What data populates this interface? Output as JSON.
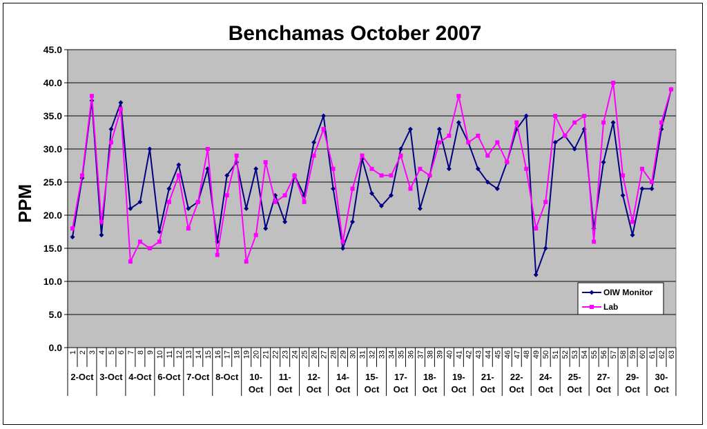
{
  "chart_data": {
    "type": "line",
    "title": "Benchamas October 2007",
    "xlabel": "",
    "ylabel": "PPM",
    "ylim": [
      0,
      45
    ],
    "yticks": [
      "0.0",
      "5.0",
      "10.0",
      "15.0",
      "20.0",
      "25.0",
      "30.0",
      "35.0",
      "40.0",
      "45.0"
    ],
    "grid": true,
    "legend_position": "bottom-right",
    "x": [
      "1",
      "2",
      "3",
      "4",
      "5",
      "6",
      "7",
      "8",
      "9",
      "10",
      "11",
      "12",
      "13",
      "14",
      "15",
      "16",
      "17",
      "18",
      "19",
      "20",
      "21",
      "22",
      "23",
      "24",
      "25",
      "26",
      "27",
      "28",
      "29",
      "30",
      "31",
      "32",
      "33",
      "34",
      "35",
      "36",
      "37",
      "38",
      "39",
      "40",
      "41",
      "42",
      "43",
      "44",
      "45",
      "46",
      "47",
      "48",
      "49",
      "50",
      "51",
      "52",
      "53",
      "54",
      "55",
      "56",
      "57",
      "58",
      "59",
      "60",
      "61",
      "62",
      "63"
    ],
    "groups": [
      {
        "start": 1,
        "end": 3,
        "lines": [
          "2-Oct"
        ]
      },
      {
        "start": 4,
        "end": 6,
        "lines": [
          "3-Oct"
        ]
      },
      {
        "start": 7,
        "end": 9,
        "lines": [
          "4-Oct"
        ]
      },
      {
        "start": 10,
        "end": 12,
        "lines": [
          "6-Oct"
        ]
      },
      {
        "start": 13,
        "end": 15,
        "lines": [
          "7-Oct"
        ]
      },
      {
        "start": 16,
        "end": 18,
        "lines": [
          "8-Oct"
        ]
      },
      {
        "start": 19,
        "end": 21,
        "lines": [
          "10-",
          "Oct"
        ]
      },
      {
        "start": 22,
        "end": 24,
        "lines": [
          "11-",
          "Oct"
        ]
      },
      {
        "start": 25,
        "end": 27,
        "lines": [
          "12-",
          "Oct"
        ]
      },
      {
        "start": 28,
        "end": 30,
        "lines": [
          "14-",
          "Oct"
        ]
      },
      {
        "start": 31,
        "end": 33,
        "lines": [
          "15-",
          "Oct"
        ]
      },
      {
        "start": 34,
        "end": 36,
        "lines": [
          "17-",
          "Oct"
        ]
      },
      {
        "start": 37,
        "end": 39,
        "lines": [
          "18-",
          "Oct"
        ]
      },
      {
        "start": 40,
        "end": 42,
        "lines": [
          "19-",
          "Oct"
        ]
      },
      {
        "start": 43,
        "end": 45,
        "lines": [
          "21-",
          "Oct"
        ]
      },
      {
        "start": 46,
        "end": 48,
        "lines": [
          "22-",
          "Oct"
        ]
      },
      {
        "start": 49,
        "end": 51,
        "lines": [
          "24-",
          "Oct"
        ]
      },
      {
        "start": 52,
        "end": 54,
        "lines": [
          "25-",
          "Oct"
        ]
      },
      {
        "start": 55,
        "end": 57,
        "lines": [
          "27-",
          "Oct"
        ]
      },
      {
        "start": 58,
        "end": 60,
        "lines": [
          "29-",
          "Oct"
        ]
      },
      {
        "start": 61,
        "end": 63,
        "lines": [
          "30-",
          "Oct"
        ]
      }
    ],
    "series": [
      {
        "name": "OIW Monitor",
        "color": "#000080",
        "marker": "diamond",
        "values": [
          16.7,
          25.6,
          37.3,
          17,
          33,
          37,
          21,
          22,
          30,
          17.5,
          24,
          27.6,
          21,
          22,
          27,
          16,
          26,
          28,
          21,
          27,
          18,
          23,
          19,
          26,
          23,
          31,
          35,
          24,
          15,
          19,
          28.5,
          23.3,
          21.4,
          23,
          30,
          33,
          21,
          26,
          33,
          27,
          34,
          31,
          27,
          25,
          24,
          28,
          33,
          35,
          11,
          15,
          31,
          32,
          30,
          33,
          18,
          28,
          34,
          23,
          17,
          24,
          24,
          33,
          39
        ]
      },
      {
        "name": "Lab",
        "color": "#ff00ff",
        "marker": "square",
        "values": [
          18,
          26,
          38,
          19,
          31,
          36,
          13,
          16,
          15,
          16,
          22,
          26,
          18,
          22,
          30,
          14,
          23,
          29,
          13,
          17,
          28,
          22,
          23,
          26,
          22,
          29,
          33,
          27,
          16,
          24,
          29,
          27,
          26,
          26,
          29,
          24,
          27,
          26,
          31,
          32,
          38,
          31,
          32,
          29,
          31,
          28,
          34,
          27,
          18,
          22,
          35,
          32,
          34,
          35,
          16,
          34,
          40,
          26,
          19,
          27,
          25,
          34,
          39
        ]
      }
    ]
  }
}
